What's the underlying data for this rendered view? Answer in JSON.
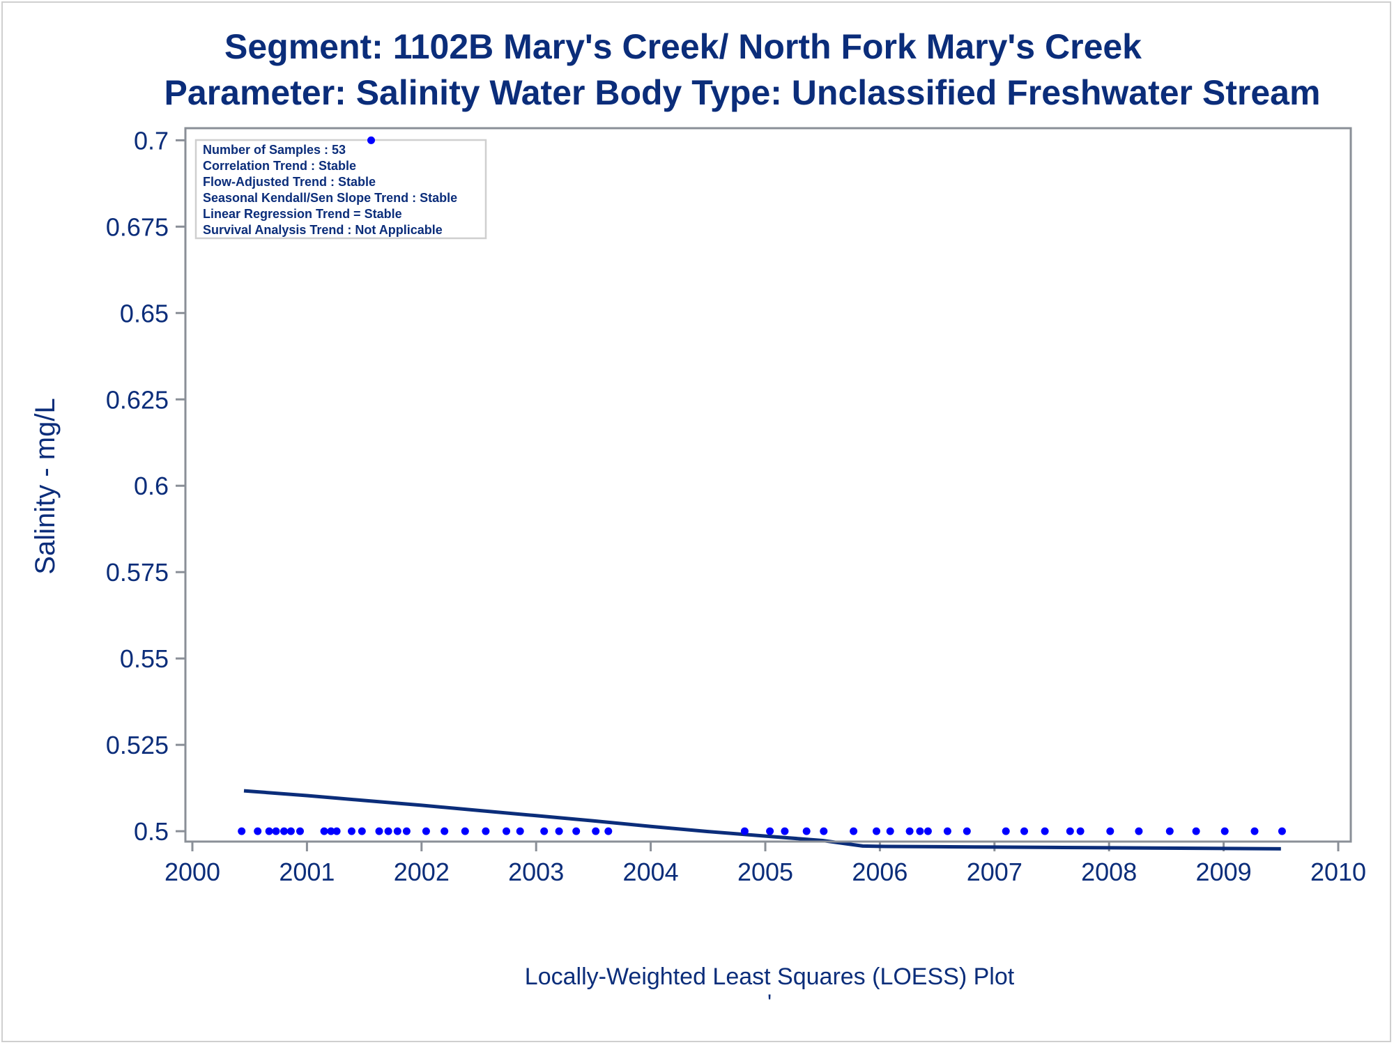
{
  "chart_data": {
    "type": "scatter",
    "title": "Segment: 1102B  Mary's Creek/ North Fork Mary's Creek",
    "subtitle": "Parameter: Salinity   Water Body Type: Unclassified Freshwater Stream",
    "xlabel": "Locally-Weighted Least Squares (LOESS) Plot",
    "ylabel": "Salinity - mg/L",
    "footnote_mark": "'",
    "xlim": [
      2000,
      2010
    ],
    "ylim": [
      0.497,
      0.7035
    ],
    "x_ticks": [
      "2000",
      "2001",
      "2002",
      "2003",
      "2004",
      "2005",
      "2006",
      "2007",
      "2008",
      "2009",
      "2010"
    ],
    "y_ticks": [
      "0.5",
      "0.525",
      "0.55",
      "0.575",
      "0.6",
      "0.625",
      "0.65",
      "0.675",
      "0.7"
    ],
    "legend_position": "top-left",
    "stats": [
      "Number of Samples : 53",
      "Correlation Trend : Stable",
      "Flow-Adjusted Trend : Stable",
      "Seasonal Kendall/Sen Slope Trend : Stable",
      "Linear Regression Trend = Stable",
      "Survival Analysis Trend : Not Applicable"
    ],
    "points": {
      "x": [
        2000.43,
        2000.57,
        2000.67,
        2000.73,
        2000.8,
        2000.86,
        2000.94,
        2001.15,
        2001.21,
        2001.26,
        2001.39,
        2001.48,
        2001.63,
        2001.71,
        2001.79,
        2001.87,
        2002.04,
        2002.2,
        2002.38,
        2002.56,
        2002.74,
        2002.86,
        2003.07,
        2003.2,
        2003.35,
        2003.52,
        2003.63,
        2004.82,
        2005.04,
        2005.17,
        2005.36,
        2005.51,
        2005.77,
        2005.97,
        2006.09,
        2006.26,
        2006.35,
        2006.42,
        2006.59,
        2006.76,
        2007.1,
        2007.26,
        2007.44,
        2007.66,
        2007.75,
        2008.01,
        2008.26,
        2008.53,
        2008.76,
        2009.01,
        2009.27,
        2009.51,
        2001.56
      ],
      "y": [
        0.5,
        0.5,
        0.5,
        0.5,
        0.5,
        0.5,
        0.5,
        0.5,
        0.5,
        0.5,
        0.5,
        0.5,
        0.5,
        0.5,
        0.5,
        0.5,
        0.5,
        0.5,
        0.5,
        0.5,
        0.5,
        0.5,
        0.5,
        0.5,
        0.5,
        0.5,
        0.5,
        0.5,
        0.5,
        0.5,
        0.5,
        0.5,
        0.5,
        0.5,
        0.5,
        0.5,
        0.5,
        0.5,
        0.5,
        0.5,
        0.5,
        0.5,
        0.5,
        0.5,
        0.5,
        0.5,
        0.5,
        0.5,
        0.5,
        0.5,
        0.5,
        0.5,
        0.7
      ]
    },
    "loess": {
      "x": [
        2000.45,
        2001.0,
        2001.5,
        2002.0,
        2002.5,
        2003.0,
        2003.5,
        2004.0,
        2004.5,
        2005.0,
        2005.5,
        2005.85,
        2006.0,
        2006.5,
        2007.0,
        2007.5,
        2008.0,
        2008.5,
        2009.0,
        2009.5
      ],
      "y": [
        0.5117,
        0.5103,
        0.5089,
        0.5075,
        0.506,
        0.5045,
        0.503,
        0.5014,
        0.4999,
        0.4986,
        0.4973,
        0.4957,
        0.4956,
        0.4955,
        0.4954,
        0.4953,
        0.4952,
        0.4951,
        0.495,
        0.4949
      ]
    },
    "colors": {
      "text": "#0b2d7a",
      "points": "#0000ff",
      "loess": "#0b2d7a",
      "axis": "#8a8f97",
      "frame": "#cfcfcf"
    }
  }
}
